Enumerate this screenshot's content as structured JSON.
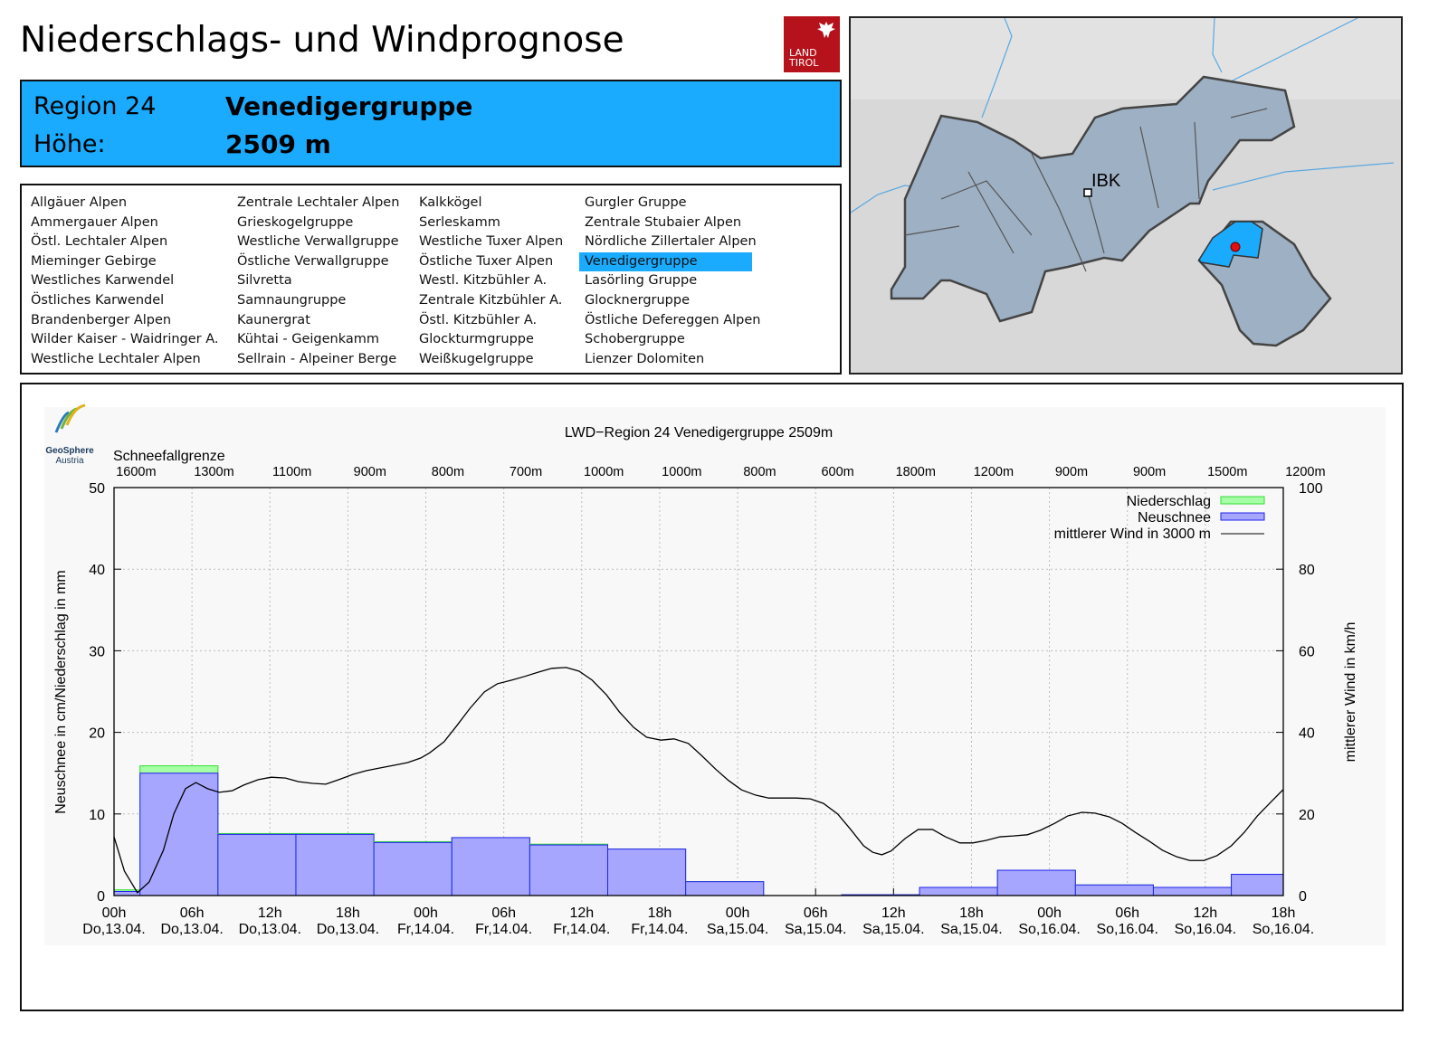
{
  "header": {
    "title": "Niederschlags- und Windprognose",
    "logo_text": [
      "LAND",
      "TIROL"
    ],
    "region_label": "Region 24",
    "region_name": "Venedigergruppe",
    "height_label": "Höhe:",
    "height_value": "2509 m"
  },
  "regions": {
    "columns": [
      [
        "Allgäuer Alpen",
        "Ammergauer Alpen",
        "Östl. Lechtaler Alpen",
        "Mieminger Gebirge",
        "Westliches Karwendel",
        "Östliches Karwendel",
        "Brandenberger Alpen",
        "Wilder Kaiser - Waidringer A.",
        "Westliche Lechtaler Alpen"
      ],
      [
        "Zentrale Lechtaler Alpen",
        "Grieskogelgruppe",
        "Westliche Verwallgruppe",
        "Östliche Verwallgruppe",
        "Silvretta",
        "Samnaungruppe",
        "Kaunergrat",
        "Kühtai - Geigenkamm",
        "Sellrain - Alpeiner Berge"
      ],
      [
        "Kalkkögel",
        "Serleskamm",
        "Westliche Tuxer Alpen",
        "Östliche Tuxer Alpen",
        "Westl. Kitzbühler A.",
        "Zentrale Kitzbühler A.",
        "Östl. Kitzbühler A.",
        "Glockturmgruppe",
        "Weißkugelgruppe"
      ],
      [
        "Gurgler Gruppe",
        "Zentrale Stubaier Alpen",
        "Nördliche Zillertaler Alpen",
        "Venedigergruppe",
        "Lasörling Gruppe",
        "Glocknergruppe",
        "Östliche Defereggen Alpen",
        "Schobergruppe",
        "Lienzer Dolomiten"
      ]
    ],
    "selected": "Venedigergruppe"
  },
  "map": {
    "city_label": "IBK",
    "highlight_color": "#1aabff",
    "marker_color": "#e01010"
  },
  "chart_logo": {
    "name": "GeoSphere",
    "sub": "Austria"
  },
  "chart_data": {
    "type": "bar",
    "title": "LWD−Region 24 Venedigergruppe 2509m",
    "ylabel": "Neuschnee in cm/Niederschlag in mm",
    "y2label": "mittlerer Wind in km/h",
    "ylim": [
      0,
      50
    ],
    "y2lim": [
      0,
      100
    ],
    "yticks": [
      0,
      10,
      20,
      30,
      40,
      50
    ],
    "y2ticks": [
      0,
      20,
      40,
      60,
      80,
      100
    ],
    "xlim_hours": [
      0,
      90
    ],
    "xticks": [
      {
        "h": "00h",
        "d": "Do,13.04."
      },
      {
        "h": "06h",
        "d": "Do,13.04."
      },
      {
        "h": "12h",
        "d": "Do,13.04."
      },
      {
        "h": "18h",
        "d": "Do,13.04."
      },
      {
        "h": "00h",
        "d": "Fr,14.04."
      },
      {
        "h": "06h",
        "d": "Fr,14.04."
      },
      {
        "h": "12h",
        "d": "Fr,14.04."
      },
      {
        "h": "18h",
        "d": "Fr,14.04."
      },
      {
        "h": "00h",
        "d": "Sa,15.04."
      },
      {
        "h": "06h",
        "d": "Sa,15.04."
      },
      {
        "h": "12h",
        "d": "Sa,15.04."
      },
      {
        "h": "18h",
        "d": "Sa,15.04."
      },
      {
        "h": "00h",
        "d": "So,16.04."
      },
      {
        "h": "06h",
        "d": "So,16.04."
      },
      {
        "h": "12h",
        "d": "So,16.04."
      },
      {
        "h": "18h",
        "d": "So,16.04."
      }
    ],
    "snowline_label": "Schneefallgrenze",
    "snowline": [
      "1600m",
      "1300m",
      "1100m",
      "900m",
      "800m",
      "700m",
      "1000m",
      "1000m",
      "800m",
      "600m",
      "1800m",
      "1200m",
      "900m",
      "900m",
      "1500m",
      "1200m"
    ],
    "legend": [
      {
        "label": "Niederschlag",
        "color": "#a6ffa6",
        "stroke": "#33dd33"
      },
      {
        "label": "Neuschnee",
        "color": "#a6a6ff",
        "stroke": "#2222ee"
      },
      {
        "label": "mittlerer Wind in 3000 m",
        "color": "#000000"
      }
    ],
    "bars": [
      {
        "start": 0,
        "end": 2,
        "niederschlag": 0.7,
        "neuschnee": 0.5
      },
      {
        "start": 2,
        "end": 8,
        "niederschlag": 15.9,
        "neuschnee": 15.0
      },
      {
        "start": 8,
        "end": 14,
        "niederschlag": 7.6,
        "neuschnee": 7.5
      },
      {
        "start": 14,
        "end": 20,
        "niederschlag": 7.6,
        "neuschnee": 7.5
      },
      {
        "start": 20,
        "end": 26,
        "niederschlag": 6.6,
        "neuschnee": 6.5
      },
      {
        "start": 26,
        "end": 32,
        "niederschlag": 7.1,
        "neuschnee": 7.1
      },
      {
        "start": 32,
        "end": 38,
        "niederschlag": 6.3,
        "neuschnee": 6.2
      },
      {
        "start": 38,
        "end": 44,
        "niederschlag": 5.7,
        "neuschnee": 5.7
      },
      {
        "start": 44,
        "end": 50,
        "niederschlag": 1.7,
        "neuschnee": 1.7
      },
      {
        "start": 50,
        "end": 56,
        "niederschlag": 0,
        "neuschnee": 0
      },
      {
        "start": 56,
        "end": 62,
        "niederschlag": 0.1,
        "neuschnee": 0.1
      },
      {
        "start": 62,
        "end": 68,
        "niederschlag": 1.0,
        "neuschnee": 1.0
      },
      {
        "start": 68,
        "end": 74,
        "niederschlag": 3.1,
        "neuschnee": 3.1
      },
      {
        "start": 74,
        "end": 80,
        "niederschlag": 1.3,
        "neuschnee": 1.3
      },
      {
        "start": 80,
        "end": 86,
        "niederschlag": 1.0,
        "neuschnee": 1.0
      },
      {
        "start": 86,
        "end": 90,
        "niederschlag": 2.6,
        "neuschnee": 2.6
      }
    ],
    "wind": [
      [
        0,
        14.4
      ],
      [
        0.8,
        6.0
      ],
      [
        1.8,
        0.7
      ],
      [
        2.7,
        3.3
      ],
      [
        3.8,
        11.1
      ],
      [
        4.6,
        20
      ],
      [
        5.5,
        26.2
      ],
      [
        6.3,
        27.7
      ],
      [
        7.2,
        26.2
      ],
      [
        8.1,
        25.3
      ],
      [
        9.1,
        25.7
      ],
      [
        10,
        27.1
      ],
      [
        11.1,
        28.4
      ],
      [
        12.1,
        29
      ],
      [
        13.2,
        28.8
      ],
      [
        14.2,
        27.9
      ],
      [
        15.3,
        27.5
      ],
      [
        16.3,
        27.3
      ],
      [
        17.3,
        28.4
      ],
      [
        18.4,
        29.7
      ],
      [
        19.4,
        30.6
      ],
      [
        20.5,
        31.3
      ],
      [
        21.5,
        31.9
      ],
      [
        22.6,
        32.6
      ],
      [
        23.6,
        33.7
      ],
      [
        24.3,
        35
      ],
      [
        25.4,
        37.7
      ],
      [
        26.4,
        41.7
      ],
      [
        27.4,
        45.9
      ],
      [
        28.5,
        49.9
      ],
      [
        29.5,
        51.9
      ],
      [
        30.6,
        52.8
      ],
      [
        31.6,
        53.7
      ],
      [
        32.7,
        54.8
      ],
      [
        33.7,
        55.7
      ],
      [
        34.8,
        55.9
      ],
      [
        35.8,
        55
      ],
      [
        36.8,
        52.8
      ],
      [
        37.9,
        49.2
      ],
      [
        38.9,
        45
      ],
      [
        40,
        41.2
      ],
      [
        41,
        38.8
      ],
      [
        42.1,
        38.1
      ],
      [
        43.1,
        38.4
      ],
      [
        44.2,
        37.3
      ],
      [
        45.2,
        34.4
      ],
      [
        46.3,
        31
      ],
      [
        47.3,
        28.2
      ],
      [
        48.3,
        25.9
      ],
      [
        49.4,
        24.6
      ],
      [
        50.4,
        23.9
      ],
      [
        52.5,
        23.9
      ],
      [
        53.6,
        23.7
      ],
      [
        54.6,
        22.6
      ],
      [
        55.7,
        20
      ],
      [
        56.7,
        16.2
      ],
      [
        57.7,
        12.2
      ],
      [
        58.4,
        10.6
      ],
      [
        59.1,
        10
      ],
      [
        59.8,
        10.9
      ],
      [
        60.9,
        14
      ],
      [
        61.9,
        16.2
      ],
      [
        63,
        16.2
      ],
      [
        64,
        14.4
      ],
      [
        65.1,
        12.9
      ],
      [
        66.1,
        12.9
      ],
      [
        67.1,
        13.5
      ],
      [
        68.2,
        14.4
      ],
      [
        69.2,
        14.6
      ],
      [
        70.3,
        14.9
      ],
      [
        71.3,
        16
      ],
      [
        72.4,
        17.7
      ],
      [
        73.4,
        19.5
      ],
      [
        74.5,
        20.4
      ],
      [
        75.5,
        20.2
      ],
      [
        76.6,
        19.3
      ],
      [
        77.6,
        17.7
      ],
      [
        78.6,
        15.5
      ],
      [
        79.7,
        13.3
      ],
      [
        80.7,
        11.1
      ],
      [
        81.8,
        9.5
      ],
      [
        82.8,
        8.6
      ],
      [
        83.9,
        8.6
      ],
      [
        84.9,
        9.8
      ],
      [
        86,
        12.2
      ],
      [
        87,
        15.5
      ],
      [
        88,
        19.5
      ],
      [
        89.1,
        23.1
      ],
      [
        90,
        26
      ]
    ],
    "grid": true,
    "legend_placement": "top-right"
  }
}
